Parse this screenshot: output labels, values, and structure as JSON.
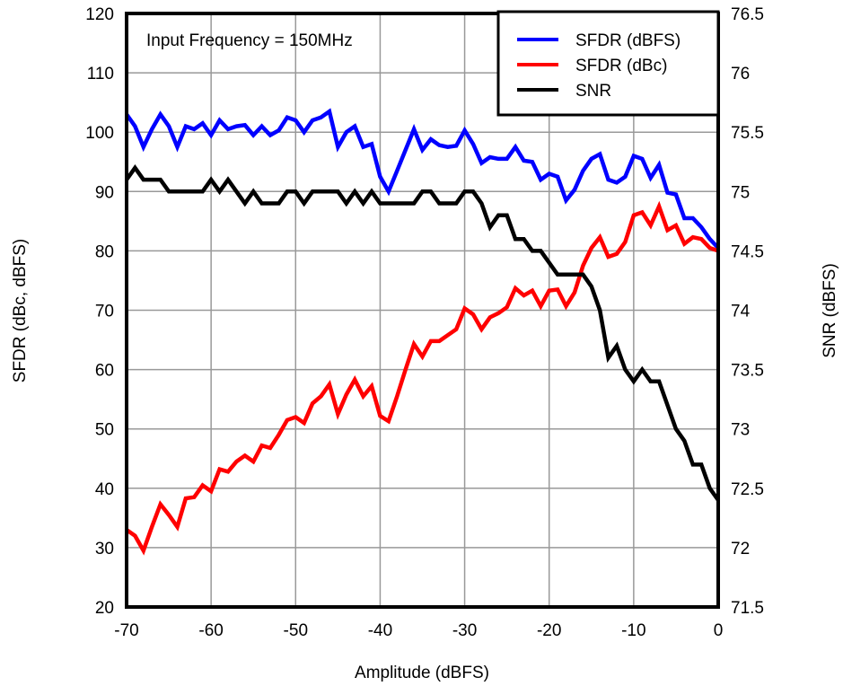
{
  "chart_data": {
    "type": "line",
    "annotation": "Input Frequency = 150MHz",
    "xlabel": "Amplitude (dBFS)",
    "ylabel": "SFDR (dBc, dBFS)",
    "y2label": "SNR (dBFS)",
    "xlim": [
      -70,
      0
    ],
    "ylim": [
      20,
      120
    ],
    "y2lim": [
      71.5,
      76.5
    ],
    "grid": true,
    "legend_position": "top-right",
    "x_ticks": [
      "-70",
      "-60",
      "-50",
      "-40",
      "-30",
      "-20",
      "-10",
      "0"
    ],
    "y_ticks": [
      "20",
      "30",
      "40",
      "50",
      "60",
      "70",
      "80",
      "90",
      "100",
      "110",
      "120"
    ],
    "y2_ticks": [
      "71.5",
      "72",
      "72.5",
      "73",
      "73.5",
      "74",
      "74.5",
      "75",
      "75.5",
      "76",
      "76.5"
    ],
    "x": [
      -70,
      -69,
      -68,
      -67,
      -66,
      -65,
      -64,
      -63,
      -62,
      -61,
      -60,
      -59,
      -58,
      -57,
      -56,
      -55,
      -54,
      -53,
      -52,
      -51,
      -50,
      -49,
      -48,
      -47,
      -46,
      -45,
      -44,
      -43,
      -42,
      -41,
      -40,
      -39,
      -38,
      -37,
      -36,
      -35,
      -34,
      -33,
      -32,
      -31,
      -30,
      -29,
      -28,
      -27,
      -26,
      -25,
      -24,
      -23,
      -22,
      -21,
      -20,
      -19,
      -18,
      -17,
      -16,
      -15,
      -14,
      -13,
      -12,
      -11,
      -10,
      -9,
      -8,
      -7,
      -6,
      -5,
      -4,
      -3,
      -2,
      -1,
      0
    ],
    "series": [
      {
        "name": "SFDR (dBFS)",
        "axis": "left",
        "color": "#0000ff",
        "values": [
          103,
          101,
          97.5,
          100.5,
          103,
          101,
          97.5,
          101,
          100.5,
          101.5,
          99.5,
          102,
          100.5,
          101,
          101.2,
          99.5,
          101,
          99.5,
          100.3,
          102.5,
          102,
          100,
          102,
          102.5,
          103.5,
          97.5,
          100,
          101,
          97.5,
          98,
          92.5,
          90,
          93.5,
          97,
          100.5,
          97,
          98.8,
          97.8,
          97.5,
          97.7,
          100.3,
          98,
          94.8,
          95.8,
          95.5,
          95.5,
          97.5,
          95.2,
          95,
          92,
          93,
          92.5,
          88.5,
          90.3,
          93.5,
          95.5,
          96.3,
          92,
          91.5,
          92.5,
          96,
          95.5,
          92.3,
          94.5,
          89.8,
          89.5,
          85.5,
          85.5,
          84,
          82,
          80.5
        ]
      },
      {
        "name": "SFDR (dBc)",
        "axis": "left",
        "color": "#ff0000",
        "values": [
          33,
          32,
          29.5,
          33.5,
          37.3,
          35.5,
          33.5,
          38.3,
          38.5,
          40.5,
          39.5,
          43.2,
          42.8,
          44.5,
          45.5,
          44.5,
          47.2,
          46.8,
          49,
          51.5,
          52,
          51,
          54.3,
          55.5,
          57.5,
          52.5,
          55.8,
          58.3,
          55.5,
          57.2,
          52.2,
          51.3,
          55.5,
          60,
          64.3,
          62.2,
          64.8,
          64.8,
          65.8,
          66.8,
          70.3,
          69.3,
          66.8,
          68.8,
          69.5,
          70.5,
          73.7,
          72.5,
          73.3,
          70.7,
          73.3,
          73.5,
          70.7,
          73,
          77.5,
          80.5,
          82.3,
          79,
          79.5,
          81.5,
          86,
          86.5,
          84.3,
          87.5,
          83.5,
          84.3,
          81.2,
          82.3,
          82,
          80.5,
          80
        ]
      },
      {
        "name": "SNR",
        "axis": "right",
        "color": "#000000",
        "values": [
          75.1,
          75.2,
          75.1,
          75.1,
          75.1,
          75.0,
          75.0,
          75.0,
          75.0,
          75.0,
          75.1,
          75.0,
          75.1,
          75.0,
          74.9,
          75.0,
          74.9,
          74.9,
          74.9,
          75.0,
          75.0,
          74.9,
          75.0,
          75.0,
          75.0,
          75.0,
          74.9,
          75.0,
          74.9,
          75.0,
          74.9,
          74.9,
          74.9,
          74.9,
          74.9,
          75.0,
          75.0,
          74.9,
          74.9,
          74.9,
          75.0,
          75.0,
          74.9,
          74.7,
          74.8,
          74.8,
          74.6,
          74.6,
          74.5,
          74.5,
          74.4,
          74.3,
          74.3,
          74.3,
          74.3,
          74.2,
          74.0,
          73.6,
          73.7,
          73.5,
          73.4,
          73.5,
          73.4,
          73.4,
          73.2,
          73.0,
          72.9,
          72.7,
          72.7,
          72.5,
          72.4
        ]
      }
    ]
  }
}
